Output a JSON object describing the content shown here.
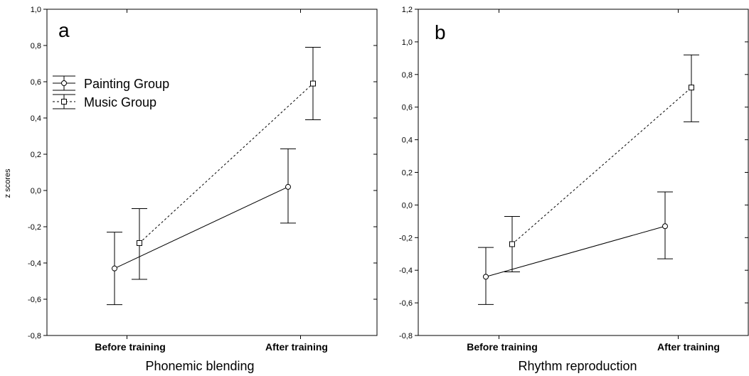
{
  "chart_data": [
    {
      "type": "line",
      "panel_label": "a",
      "xlabel": "Phonemic blending",
      "ylabel": "z scores",
      "categories": [
        "Before training",
        "After training"
      ],
      "ylim": [
        -0.8,
        1.0
      ],
      "yticks": [
        "-0,8",
        "-0,6",
        "-0,4",
        "-0,2",
        "0,0",
        "0,2",
        "0,4",
        "0,6",
        "0,8",
        "1,0"
      ],
      "ytick_values": [
        -0.8,
        -0.6,
        -0.4,
        -0.2,
        0.0,
        0.2,
        0.4,
        0.6,
        0.8,
        1.0
      ],
      "legend": {
        "position": "upper-left"
      },
      "series": [
        {
          "name": "Painting Group",
          "marker": "circle",
          "line": "solid",
          "values": [
            -0.43,
            0.02
          ],
          "err_low": [
            -0.63,
            -0.18
          ],
          "err_high": [
            -0.23,
            0.23
          ]
        },
        {
          "name": "Music Group",
          "marker": "square",
          "line": "dashed",
          "values": [
            -0.29,
            0.59
          ],
          "err_low": [
            -0.49,
            0.39
          ],
          "err_high": [
            -0.1,
            0.79
          ]
        }
      ]
    },
    {
      "type": "line",
      "panel_label": "b",
      "xlabel": "Rhythm reproduction",
      "ylabel": "",
      "categories": [
        "Before training",
        "After training"
      ],
      "ylim": [
        -0.8,
        1.2
      ],
      "yticks": [
        "-0,8",
        "-0,6",
        "-0,4",
        "-0,2",
        "0,0",
        "0,2",
        "0,4",
        "0,6",
        "0,8",
        "1,0",
        "1,2"
      ],
      "ytick_values": [
        -0.8,
        -0.6,
        -0.4,
        -0.2,
        0.0,
        0.2,
        0.4,
        0.6,
        0.8,
        1.0,
        1.2
      ],
      "series": [
        {
          "name": "Painting Group",
          "marker": "circle",
          "line": "solid",
          "values": [
            -0.44,
            -0.13
          ],
          "err_low": [
            -0.61,
            -0.33
          ],
          "err_high": [
            -0.26,
            0.08
          ]
        },
        {
          "name": "Music Group",
          "marker": "square",
          "line": "dashed",
          "values": [
            -0.24,
            0.72
          ],
          "err_low": [
            -0.41,
            0.51
          ],
          "err_high": [
            -0.07,
            0.92
          ]
        }
      ]
    }
  ]
}
